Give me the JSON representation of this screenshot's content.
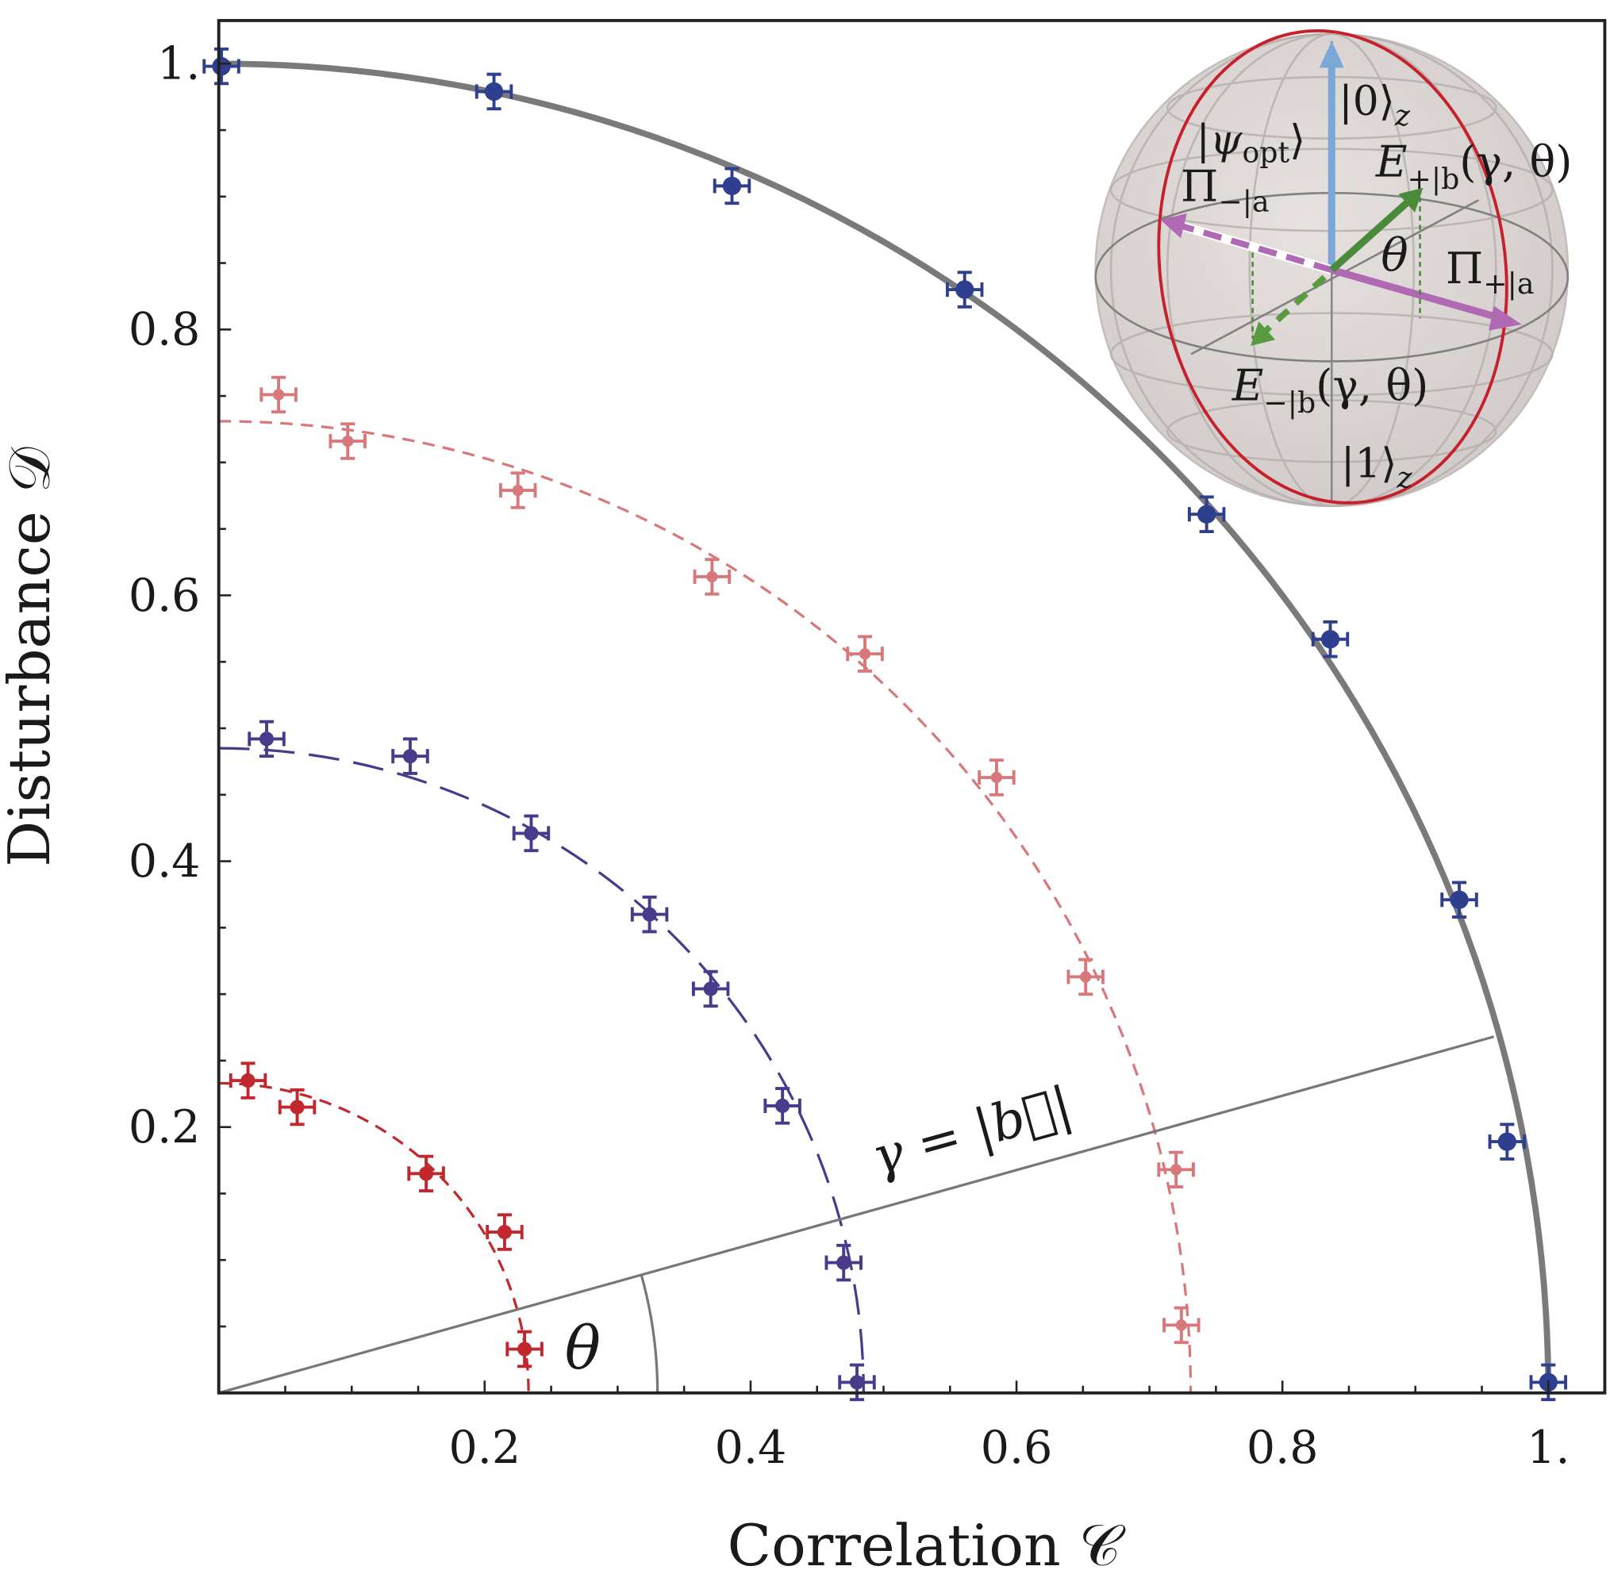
{
  "chart_data": {
    "type": "scatter",
    "xlabel": "Correlation 𝒞",
    "ylabel": "Disturbance 𝒟",
    "xlim": [
      0,
      1.0425
    ],
    "ylim": [
      0,
      1.032
    ],
    "xticks": [
      {
        "v": 0.2,
        "label": "0.2"
      },
      {
        "v": 0.4,
        "label": "0.4"
      },
      {
        "v": 0.6,
        "label": "0.6"
      },
      {
        "v": 0.8,
        "label": "0.8"
      },
      {
        "v": 1.0,
        "label": "1."
      }
    ],
    "yticks": [
      {
        "v": 0.2,
        "label": "0.2"
      },
      {
        "v": 0.4,
        "label": "0.4"
      },
      {
        "v": 0.6,
        "label": "0.6"
      },
      {
        "v": 0.8,
        "label": "0.8"
      },
      {
        "v": 1.0,
        "label": "1."
      }
    ],
    "minor_tick_step": 0.05,
    "grid": false,
    "series": [
      {
        "color": "#2d3f8e",
        "fit_radius": 1.0,
        "fit_style": "solid",
        "err": 0.013,
        "marker_size": "large",
        "points": [
          [
            0.002,
            0.998
          ],
          [
            0.207,
            0.979
          ],
          [
            0.386,
            0.908
          ],
          [
            0.561,
            0.83
          ],
          [
            0.743,
            0.661
          ],
          [
            0.836,
            0.567
          ],
          [
            0.933,
            0.371
          ],
          [
            0.969,
            0.189
          ],
          [
            1.0,
            0.008
          ]
        ]
      },
      {
        "color": "#d9787a",
        "fit_radius": 0.731,
        "fit_style": "short-dash",
        "err": 0.013,
        "marker_size": "small",
        "points": [
          [
            0.045,
            0.751
          ],
          [
            0.097,
            0.716
          ],
          [
            0.225,
            0.679
          ],
          [
            0.371,
            0.614
          ],
          [
            0.486,
            0.556
          ],
          [
            0.585,
            0.463
          ],
          [
            0.652,
            0.313
          ],
          [
            0.72,
            0.168
          ],
          [
            0.724,
            0.051
          ]
        ]
      },
      {
        "color": "#4a3a8c",
        "fit_radius": 0.485,
        "fit_style": "long-dash",
        "err": 0.013,
        "marker_size": "medium",
        "points": [
          [
            0.036,
            0.492
          ],
          [
            0.144,
            0.479
          ],
          [
            0.235,
            0.421
          ],
          [
            0.324,
            0.36
          ],
          [
            0.37,
            0.304
          ],
          [
            0.424,
            0.216
          ],
          [
            0.47,
            0.098
          ],
          [
            0.48,
            0.008
          ]
        ]
      },
      {
        "color": "#c1272d",
        "fit_radius": 0.233,
        "fit_style": "short-dash",
        "err": 0.013,
        "marker_size": "medium",
        "points": [
          [
            0.022,
            0.235
          ],
          [
            0.059,
            0.215
          ],
          [
            0.156,
            0.165
          ],
          [
            0.215,
            0.121
          ],
          [
            0.23,
            0.033
          ]
        ]
      }
    ],
    "annotations": {
      "ray_end": [
        0.959,
        0.268
      ],
      "gamma_label": "γ = |b⃗|",
      "theta_label": "θ"
    }
  },
  "inset": {
    "psi_opt": {
      "main": "|ψ",
      "sub": "opt",
      "tail": "⟩"
    },
    "zero_z": {
      "main": "|0⟩",
      "sub": "z"
    },
    "one_z": {
      "main": "|1⟩",
      "sub": "z"
    },
    "e_plus": {
      "main": "E",
      "sub": "+|b",
      "tail": "(γ, θ)"
    },
    "e_minus": {
      "main": "E",
      "sub": "−|b",
      "tail": "(γ, θ)"
    },
    "pi_minus": {
      "main": "Π",
      "sub": "−|a"
    },
    "pi_plus": {
      "main": "Π",
      "sub": "+|a"
    },
    "theta": "θ",
    "colors": {
      "z_axis": "#7aa8d8",
      "pi": "#b06ab3",
      "e": "#4a8a3a",
      "great_circle": "#c8202a",
      "sphere": "#d8d2d0"
    }
  }
}
